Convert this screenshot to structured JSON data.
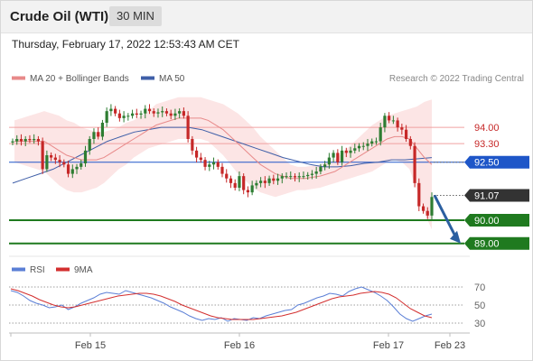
{
  "header": {
    "title": "Crude Oil (WTI)",
    "timeframe": "30 MIN"
  },
  "timestamp": "Thursday, February 17, 2022 12:53:43 AM CET",
  "legend": {
    "ma20_label": "MA 20 + Bollinger Bands",
    "ma50_label": "MA 50",
    "copyright": "Research © 2022 Trading Central",
    "rsi_label": "RSI",
    "rsi_ma_label": "9MA"
  },
  "colors": {
    "up": "#2e7d32",
    "down": "#c62828",
    "bollinger": "#fbdcdc",
    "ma20": "#e88a8a",
    "ma50": "#3f5fa8",
    "resistance": "#c62828",
    "support": "#1f7a1f",
    "pivot": "#1e56c8",
    "last": "#333333",
    "rsi": "#5b7fd6",
    "rsi_ma": "#d32f2f",
    "arrow": "#2b5fa0"
  },
  "chart_data": [
    {
      "type": "candlestick",
      "title": "Crude Oil (WTI)",
      "interval": "30 MIN",
      "x_labels": [
        "Feb 15",
        "Feb 16",
        "Feb 17",
        "Feb 23"
      ],
      "ylim": [
        88.6,
        95.6
      ],
      "levels": [
        {
          "value": 94.0,
          "label": "94.00",
          "role": "resistance"
        },
        {
          "value": 93.3,
          "label": "93.30",
          "role": "resistance"
        },
        {
          "value": 92.5,
          "label": "92.50",
          "role": "pivot"
        },
        {
          "value": 91.07,
          "label": "91.07",
          "role": "last"
        },
        {
          "value": 90.0,
          "label": "90.00",
          "role": "support"
        },
        {
          "value": 89.0,
          "label": "89.00",
          "role": "support"
        }
      ],
      "forecast": {
        "from": 91.07,
        "to": 89.0,
        "direction": "down"
      },
      "close": [
        93.4,
        93.5,
        93.4,
        93.5,
        93.45,
        93.5,
        93.4,
        92.2,
        92.8,
        92.7,
        92.6,
        92.5,
        92.4,
        92.0,
        92.2,
        92.3,
        92.45,
        93.0,
        93.5,
        93.8,
        93.6,
        94.2,
        94.7,
        94.8,
        94.6,
        94.4,
        94.5,
        94.5,
        94.6,
        94.55,
        94.6,
        94.8,
        94.7,
        94.6,
        94.65,
        94.7,
        94.6,
        94.5,
        94.6,
        94.7,
        94.5,
        93.5,
        93.0,
        92.7,
        92.6,
        92.3,
        92.4,
        92.5,
        92.3,
        92.0,
        91.8,
        91.6,
        91.4,
        91.9,
        91.3,
        91.2,
        91.5,
        91.6,
        91.7,
        91.6,
        91.8,
        91.7,
        91.8,
        91.9,
        91.9,
        91.9,
        91.85,
        91.9,
        91.9,
        91.95,
        92.0,
        92.1,
        92.3,
        92.4,
        92.7,
        92.9,
        92.5,
        93.0,
        92.9,
        93.0,
        93.1,
        93.2,
        93.2,
        93.3,
        93.4,
        93.4,
        94.0,
        94.5,
        94.3,
        94.3,
        94.0,
        93.9,
        93.5,
        93.2,
        91.6,
        90.6,
        90.4,
        90.2,
        91.0
      ],
      "ma20": [
        93.4,
        93.4,
        93.4,
        93.4,
        93.4,
        93.2,
        93.0,
        92.8,
        92.7,
        92.6,
        92.6,
        92.6,
        92.7,
        92.9,
        93.1,
        93.3,
        93.5,
        93.7,
        93.9,
        94.1,
        94.2,
        94.3,
        94.4,
        94.4,
        94.4,
        94.4,
        94.3,
        94.1,
        93.9,
        93.6,
        93.3,
        93.0,
        92.7,
        92.4,
        92.2,
        92.0,
        91.9,
        91.8,
        91.8,
        91.8,
        91.85,
        91.9,
        92.0,
        92.1,
        92.3,
        92.5,
        92.7,
        92.9,
        93.1,
        93.3,
        93.5,
        93.6,
        93.6,
        93.5,
        93.1,
        92.7,
        92.4
      ],
      "ma50": [
        91.6,
        91.8,
        92.0,
        92.2,
        92.5,
        92.8,
        93.1,
        93.4,
        93.6,
        93.8,
        93.9,
        94.0,
        94.0,
        94.0,
        93.9,
        93.7,
        93.5,
        93.3,
        93.1,
        92.9,
        92.7,
        92.55,
        92.4,
        92.3,
        92.3,
        92.35,
        92.45,
        92.5,
        92.6,
        92.6,
        92.65,
        92.7
      ]
    },
    {
      "type": "line",
      "title": "RSI",
      "series": [
        {
          "name": "RSI",
          "values": [
            66,
            64,
            60,
            55,
            52,
            50,
            47,
            48,
            50,
            45,
            48,
            52,
            55,
            58,
            62,
            64,
            63,
            62,
            66,
            64,
            62,
            60,
            58,
            55,
            52,
            48,
            45,
            42,
            38,
            35,
            33,
            35,
            34,
            36,
            32,
            35,
            34,
            33,
            36,
            35,
            38,
            40,
            42,
            44,
            45,
            50,
            52,
            55,
            58,
            60,
            63,
            62,
            60,
            65,
            68,
            70,
            67,
            64,
            60,
            55,
            48,
            40,
            35,
            32,
            35,
            38,
            40
          ]
        },
        {
          "name": "9MA",
          "values": [
            68,
            66,
            63,
            60,
            56,
            53,
            50,
            48,
            47,
            48,
            50,
            52,
            54,
            56,
            58,
            60,
            61,
            62,
            63,
            63,
            62,
            60,
            57,
            54,
            50,
            47,
            44,
            41,
            38,
            36,
            35,
            34,
            34,
            34,
            34,
            35,
            36,
            37,
            38,
            40,
            42,
            45,
            48,
            51,
            54,
            57,
            59,
            60,
            61,
            63,
            64,
            65,
            64,
            62,
            58,
            52,
            46,
            42,
            38,
            36
          ]
        }
      ],
      "ylim": [
        22,
        80
      ],
      "y_ticks": [
        "70",
        "50",
        "30"
      ]
    }
  ]
}
